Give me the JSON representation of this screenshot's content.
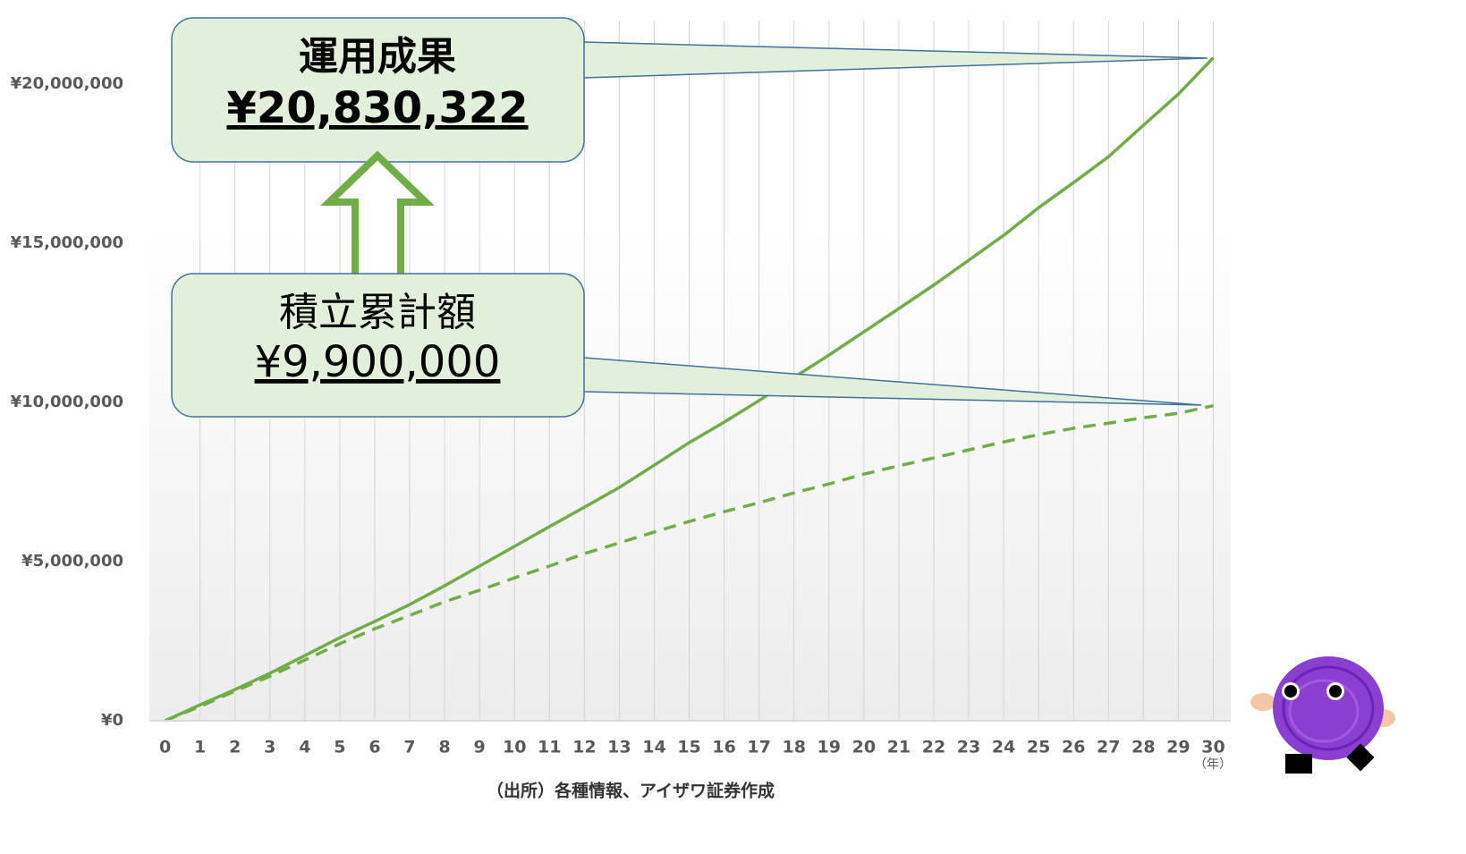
{
  "chart_data": {
    "type": "line",
    "callouts": [
      {
        "title": "運用成果",
        "value": "¥20,830,322"
      },
      {
        "title": "積立累計額",
        "value": "¥9,900,000"
      }
    ],
    "x": [
      0,
      1,
      2,
      3,
      4,
      5,
      6,
      7,
      8,
      9,
      10,
      11,
      12,
      13,
      14,
      15,
      16,
      17,
      18,
      19,
      20,
      21,
      22,
      23,
      24,
      25,
      26,
      27,
      28,
      29,
      30
    ],
    "series": [
      {
        "color": "#70ad47",
        "style": "solid",
        "values": [
          0,
          500000,
          980000,
          1490000,
          2050000,
          2610000,
          3120000,
          3650000,
          4240000,
          4860000,
          5480000,
          6100000,
          6710000,
          7330000,
          8030000,
          8740000,
          9380000,
          10060000,
          10790000,
          11490000,
          12220000,
          12950000,
          13690000,
          14470000,
          15250000,
          16120000,
          16910000,
          17720000,
          18710000,
          19690000,
          20830322
        ]
      },
      {
        "color": "#70ad47",
        "style": "dashed",
        "values": [
          0,
          450000,
          930000,
          1400000,
          1910000,
          2420000,
          2890000,
          3310000,
          3740000,
          4100000,
          4490000,
          4860000,
          5250000,
          5590000,
          5930000,
          6260000,
          6570000,
          6850000,
          7160000,
          7440000,
          7750000,
          8010000,
          8260000,
          8510000,
          8760000,
          8990000,
          9190000,
          9350000,
          9520000,
          9660000,
          9900000
        ]
      }
    ],
    "xlim": [
      -0.45,
      30.5
    ],
    "xticks": [
      0,
      1,
      2,
      3,
      4,
      5,
      6,
      7,
      8,
      9,
      10,
      11,
      12,
      13,
      14,
      15,
      16,
      17,
      18,
      19,
      20,
      21,
      22,
      23,
      24,
      25,
      26,
      27,
      28,
      29,
      30
    ],
    "ylim": [
      0,
      22000000
    ],
    "yticks": [
      {
        "value": 0,
        "label": "¥0"
      },
      {
        "value": 5000000,
        "label": "¥5,000,000"
      },
      {
        "value": 10000000,
        "label": "¥10,000,000"
      },
      {
        "value": 15000000,
        "label": "¥15,000,000"
      },
      {
        "value": 20000000,
        "label": "¥20,000,000"
      }
    ],
    "grid": "x",
    "x_unit": "（年）",
    "source": "（出所）各種情報、アイザワ証券作成"
  }
}
